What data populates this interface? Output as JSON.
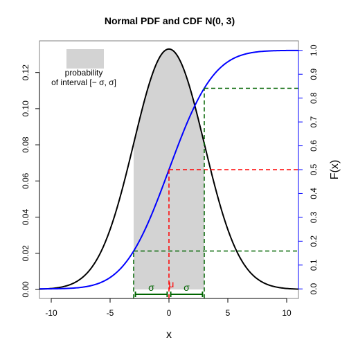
{
  "chart_data": {
    "type": "line",
    "title": "Normal PDF and CDF N(0, 3)",
    "xlabel": "x",
    "ylabel_right": "F(x)",
    "distribution": {
      "mean": 0,
      "sd": 3
    },
    "xlim": [
      -11,
      11
    ],
    "ylim_left": [
      -0.005,
      0.1375
    ],
    "ylim_right": [
      -0.04,
      1.04
    ],
    "x_ticks": [
      -10,
      -5,
      0,
      5,
      10
    ],
    "y_ticks_left": [
      "0.00",
      "0.02",
      "0.04",
      "0.06",
      "0.08",
      "0.10",
      "0.12"
    ],
    "y_ticks_right": [
      "0.0",
      "0.1",
      "0.2",
      "0.3",
      "0.4",
      "0.5",
      "0.6",
      "0.7",
      "0.8",
      "0.9",
      "1.0"
    ],
    "series": [
      {
        "role": "pdf",
        "color": "#000000",
        "axis": "left",
        "x": [
          -11,
          -10,
          -9,
          -8,
          -7,
          -6,
          -5,
          -4,
          -3,
          -2,
          -1,
          0,
          1,
          2,
          3,
          4,
          5,
          6,
          7,
          8,
          9,
          10,
          11
        ],
        "y": [
          0.0002,
          0.0005,
          0.0015,
          0.0038,
          0.0088,
          0.018,
          0.0332,
          0.0547,
          0.0807,
          0.1065,
          0.1258,
          0.133,
          0.1258,
          0.1065,
          0.0807,
          0.0547,
          0.0332,
          0.018,
          0.0088,
          0.0038,
          0.0015,
          0.0005,
          0.0002
        ]
      },
      {
        "role": "cdf",
        "color": "#0000ff",
        "axis": "right",
        "x": [
          -11,
          -10,
          -9,
          -8,
          -7,
          -6,
          -5,
          -4,
          -3,
          -2,
          -1,
          0,
          1,
          2,
          3,
          4,
          5,
          6,
          7,
          8,
          9,
          10,
          11
        ],
        "y": [
          0.0001,
          0.0004,
          0.0013,
          0.0038,
          0.0098,
          0.0228,
          0.0478,
          0.0912,
          0.1587,
          0.2525,
          0.3694,
          0.5,
          0.6306,
          0.7475,
          0.8413,
          0.9088,
          0.9522,
          0.9772,
          0.9902,
          0.9962,
          0.9987,
          0.9996,
          0.9999
        ]
      }
    ],
    "shaded_interval": {
      "from": -3,
      "to": 3,
      "color": "#d3d3d3"
    },
    "reference_lines": [
      {
        "x": -3,
        "F": 0.1587,
        "color": "#006400",
        "style": "dashed"
      },
      {
        "x": 0,
        "F": 0.5,
        "color": "#ff0000",
        "style": "dashed"
      },
      {
        "x": 3,
        "F": 0.8413,
        "color": "#006400",
        "style": "dashed"
      }
    ],
    "annotations": [
      {
        "text": "σ",
        "x": -1.5,
        "color": "#006400"
      },
      {
        "text": "μ",
        "x": 0.2,
        "color": "#ff0000"
      },
      {
        "text": "σ",
        "x": 1.5,
        "color": "#006400"
      }
    ],
    "legend": {
      "placement": "top-left",
      "line1": "probability",
      "line2": "of interval [− σ, σ]",
      "swatch_color": "#d3d3d3"
    },
    "grid": false,
    "right_axis_color": "#0000ff"
  }
}
